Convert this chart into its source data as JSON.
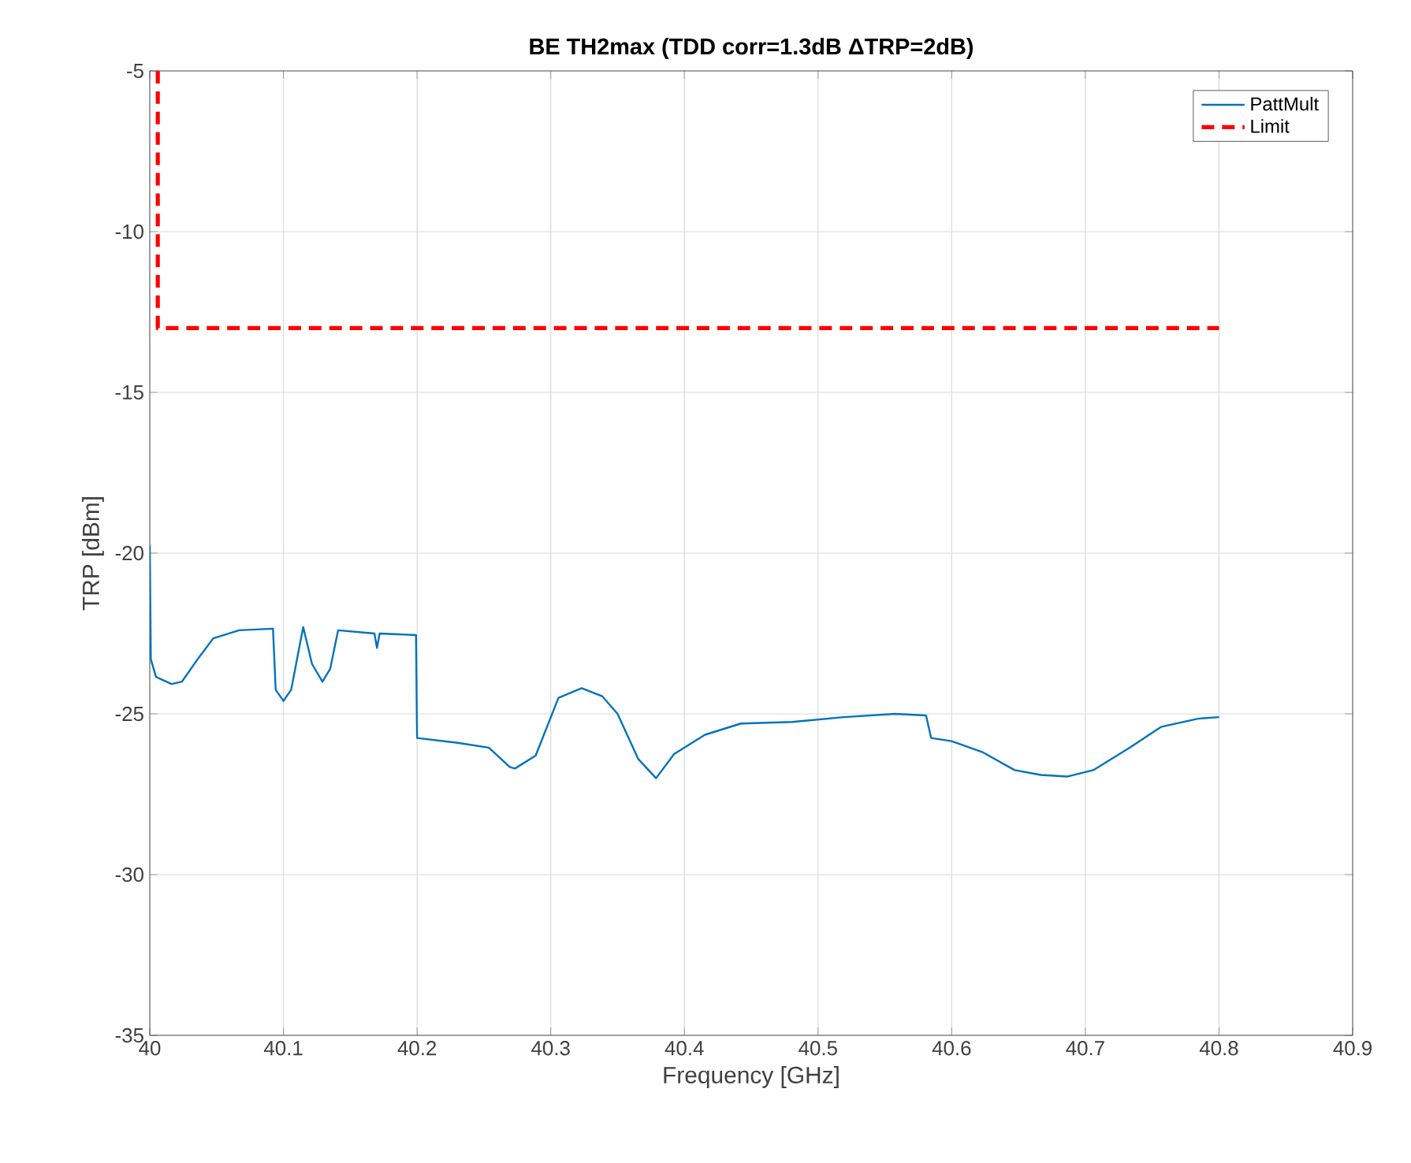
{
  "chart_data": {
    "type": "line",
    "title": "BE TH2max (TDD corr=1.3dB ΔTRP=2dB)",
    "xlabel": "Frequency [GHz]",
    "ylabel": "TRP [dBm]",
    "xlim": [
      40,
      40.9
    ],
    "ylim": [
      -35,
      -5
    ],
    "xticks": [
      40,
      40.1,
      40.2,
      40.3,
      40.4,
      40.5,
      40.6,
      40.7,
      40.8,
      40.9
    ],
    "yticks": [
      -35,
      -30,
      -25,
      -20,
      -15,
      -10,
      -5
    ],
    "grid": true,
    "legend": "top right",
    "series": [
      {
        "name": "PattMult",
        "color": "#0072bd",
        "line_style": "solid",
        "x": [
          40,
          40.0008,
          40.0047,
          40.0163,
          40.024,
          40.0358,
          40.0475,
          40.0669,
          40.0922,
          40.0942,
          40.1,
          40.1058,
          40.1148,
          40.1214,
          40.1292,
          40.135,
          40.1409,
          40.1681,
          40.17,
          40.172,
          40.1992,
          40.2,
          40.2304,
          40.2537,
          40.2693,
          40.2732,
          40.2887,
          40.3058,
          40.3231,
          40.3385,
          40.35,
          40.3654,
          40.3788,
          40.3923,
          40.4154,
          40.4423,
          40.4808,
          40.5192,
          40.5577,
          40.5808,
          40.5846,
          40.6,
          40.6235,
          40.6471,
          40.6667,
          40.6863,
          40.7059,
          40.7333,
          40.7569,
          40.7843,
          40.8
        ],
        "values": [
          -19.75,
          -23.3,
          -23.85,
          -24.07,
          -24.0,
          -23.3,
          -22.65,
          -22.4,
          -22.35,
          -24.25,
          -24.6,
          -24.25,
          -22.3,
          -23.45,
          -24.0,
          -23.6,
          -22.4,
          -22.5,
          -22.95,
          -22.5,
          -22.55,
          -25.75,
          -25.9,
          -26.05,
          -26.65,
          -26.7,
          -26.3,
          -24.5,
          -24.2,
          -24.45,
          -25.0,
          -26.4,
          -27.0,
          -26.25,
          -25.65,
          -25.3,
          -25.25,
          -25.1,
          -25.0,
          -25.05,
          -25.75,
          -25.85,
          -26.2,
          -26.75,
          -26.9,
          -26.95,
          -26.75,
          -26.05,
          -25.4,
          -25.15,
          -25.1
        ]
      },
      {
        "name": "Limit",
        "color": "#ff0000",
        "line_style": "dashed",
        "x": [
          40.006,
          40.006,
          40.8
        ],
        "values": [
          -5,
          -13,
          -13
        ]
      }
    ]
  }
}
